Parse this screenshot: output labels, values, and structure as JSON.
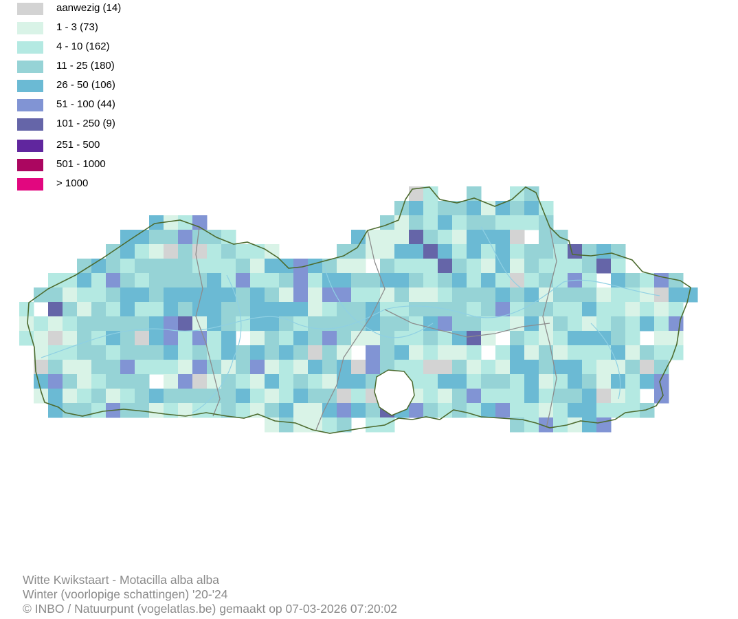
{
  "legend": {
    "items": [
      {
        "label": "aanwezig (14)",
        "color": "#d3d3d3"
      },
      {
        "label": "1 - 3 (73)",
        "color": "#d9f3e7"
      },
      {
        "label": "4 - 10 (162)",
        "color": "#b4e9e2"
      },
      {
        "label": "11 - 25 (180)",
        "color": "#96d3d6"
      },
      {
        "label": "26 - 50 (106)",
        "color": "#6bbad4"
      },
      {
        "label": "51 - 100 (44)",
        "color": "#8194d4"
      },
      {
        "label": "101 - 250 (9)",
        "color": "#6565a8"
      },
      {
        "label": "251 - 500",
        "color": "#60269e"
      },
      {
        "label": "501 - 1000",
        "color": "#ab0660"
      },
      {
        "label": "> 1000",
        "color": "#e2077f"
      }
    ]
  },
  "map": {
    "border_color": "#4d6b2f",
    "province_border_color": "#8c8c8c",
    "river_color": "#8fd0e3"
  },
  "footer": {
    "title": "Witte Kwikstaart - Motacilla alba alba",
    "subtitle": "Winter (voorlopige schattingen) '20-'24",
    "credit": "© INBO / Natuurpunt (vogelatlas.be) gemaakt op 07-03-2026 07:20:02"
  }
}
